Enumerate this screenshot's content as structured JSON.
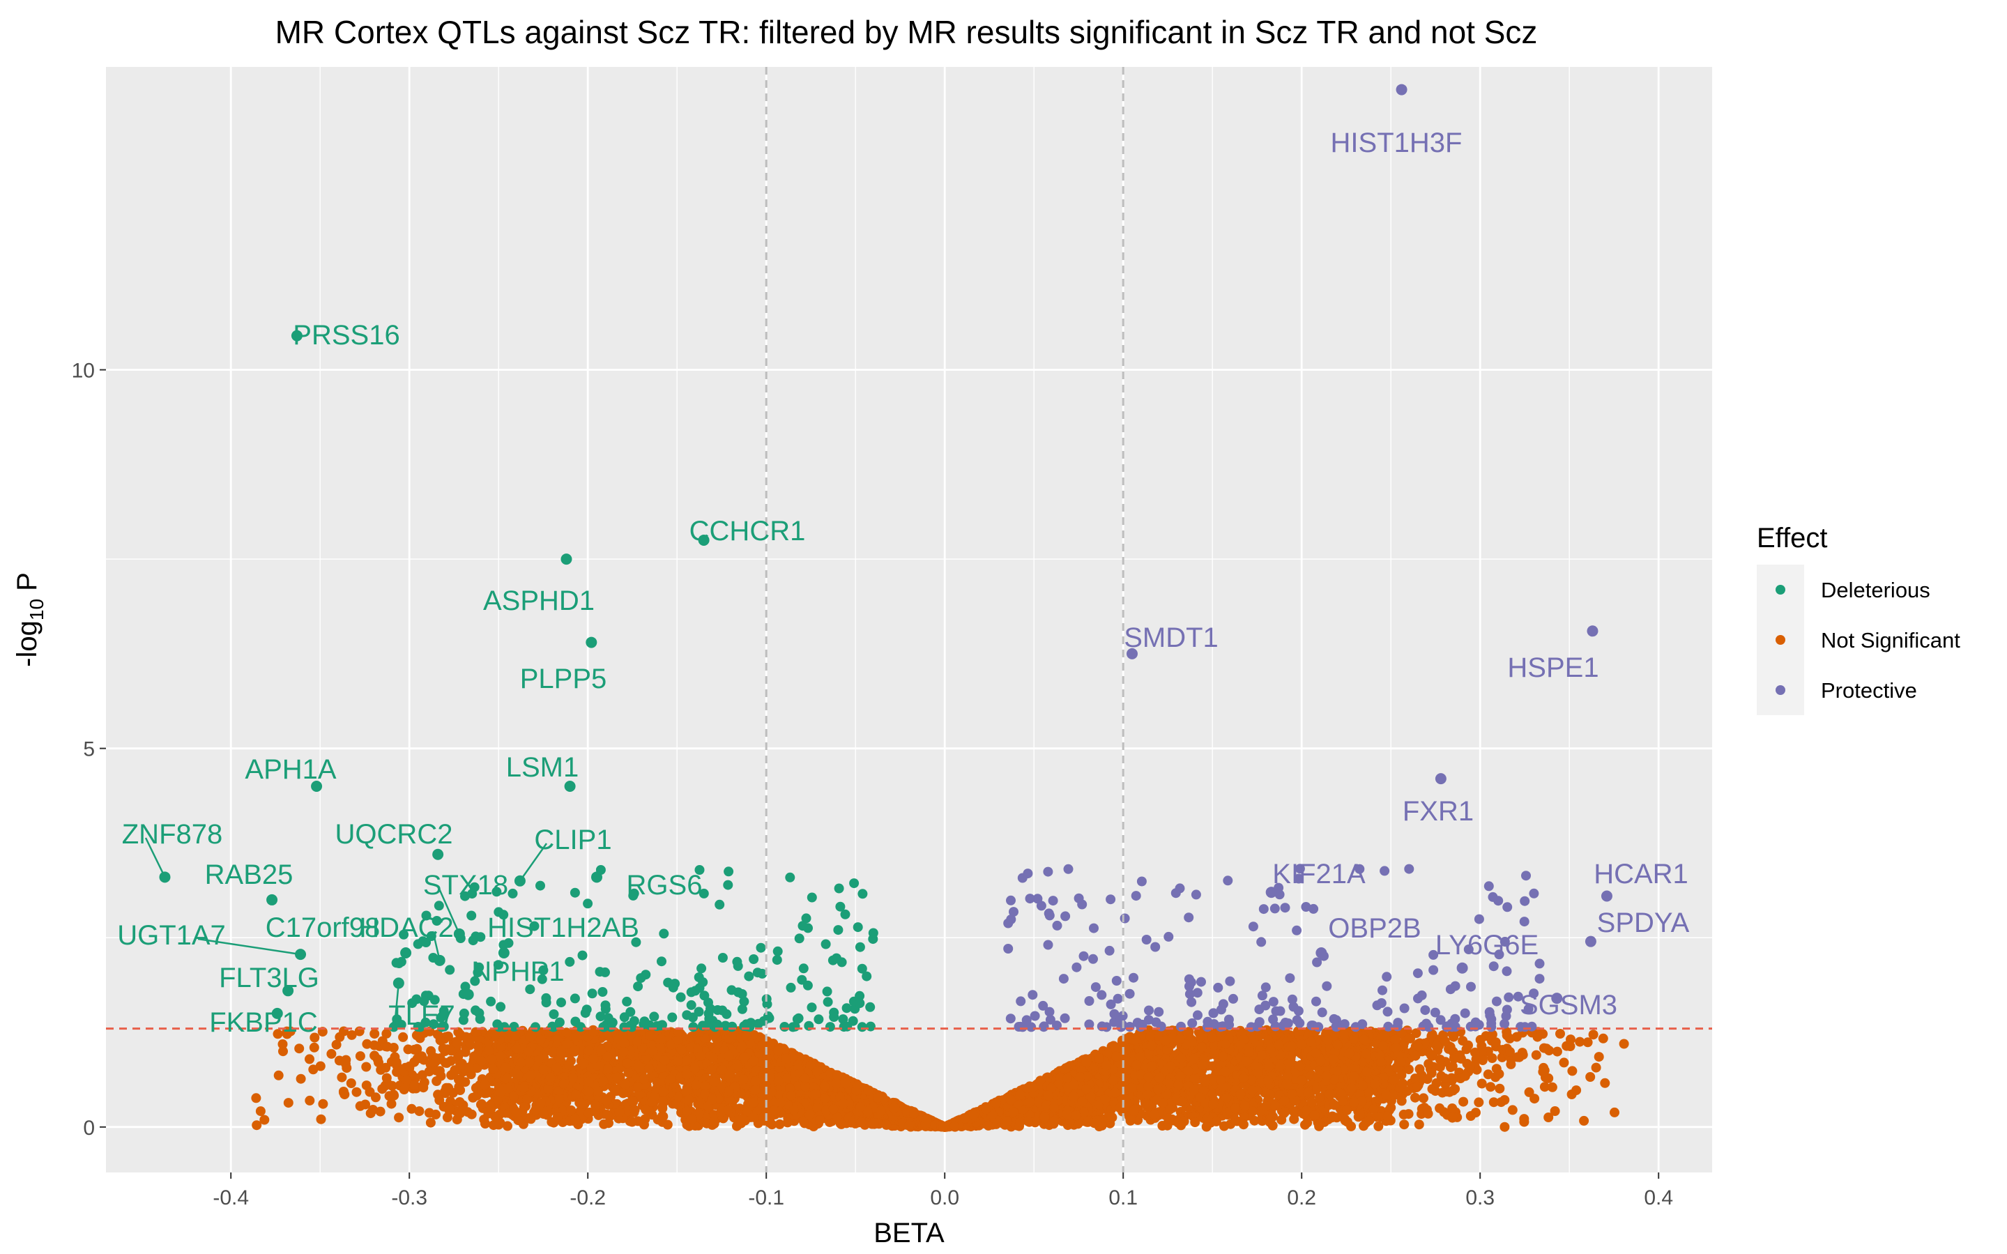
{
  "chart_data": {
    "type": "scatter",
    "title": "MR Cortex QTLs against Scz TR: filtered by MR results significant in Scz TR and not Scz",
    "xlabel": "BETA",
    "ylabel_main": "-log",
    "ylabel_sub": "10",
    "ylabel_tail": " P",
    "xlim": [
      -0.47,
      0.43
    ],
    "ylim": [
      -0.6,
      14.0
    ],
    "x_ticks": [
      -0.4,
      -0.3,
      -0.2,
      -0.1,
      0.0,
      0.1,
      0.2,
      0.3,
      0.4
    ],
    "x_tick_labels": [
      "-0.4",
      "-0.3",
      "-0.2",
      "-0.1",
      "0.0",
      "0.1",
      "0.2",
      "0.3",
      "0.4"
    ],
    "y_ticks": [
      0,
      5,
      10
    ],
    "y_tick_labels": [
      "0",
      "5",
      "10"
    ],
    "grid": true,
    "vlines": [
      -0.1,
      0.1
    ],
    "hline": 1.3,
    "colors": {
      "Deleterious": "#1b9e77",
      "Not Significant": "#d95f02",
      "Protective": "#7570b3",
      "panel_bg": "#ebebeb",
      "grid": "#ffffff",
      "vline": "#bdbdbd",
      "hline": "#e8604a"
    },
    "legend": {
      "title": "Effect",
      "position": "right",
      "entries": [
        "Deleterious",
        "Not Significant",
        "Protective"
      ]
    },
    "labeled_points": [
      {
        "gene": "HIST1H3F",
        "x": 0.256,
        "y": 13.7,
        "group": "Protective"
      },
      {
        "gene": "PRSS16",
        "x": -0.363,
        "y": 10.45,
        "group": "Deleterious"
      },
      {
        "gene": "CCHCR1",
        "x": -0.135,
        "y": 7.75,
        "group": "Deleterious"
      },
      {
        "gene": "ASPHD1",
        "x": -0.212,
        "y": 7.5,
        "group": "Deleterious"
      },
      {
        "gene": "PLPP5",
        "x": -0.198,
        "y": 6.4,
        "group": "Deleterious"
      },
      {
        "gene": "SMDT1",
        "x": 0.105,
        "y": 6.25,
        "group": "Protective"
      },
      {
        "gene": "HSPE1",
        "x": 0.363,
        "y": 6.55,
        "group": "Protective"
      },
      {
        "gene": "FXR1",
        "x": 0.278,
        "y": 4.6,
        "group": "Protective"
      },
      {
        "gene": "APH1A",
        "x": -0.352,
        "y": 4.5,
        "group": "Deleterious"
      },
      {
        "gene": "LSM1",
        "x": -0.21,
        "y": 4.5,
        "group": "Deleterious"
      },
      {
        "gene": "ZNF878",
        "x": -0.437,
        "y": 3.3,
        "group": "Deleterious"
      },
      {
        "gene": "UQCRC2",
        "x": -0.284,
        "y": 3.6,
        "group": "Deleterious"
      },
      {
        "gene": "RAB25",
        "x": -0.377,
        "y": 3.0,
        "group": "Deleterious"
      },
      {
        "gene": "CLIP1",
        "x": -0.238,
        "y": 3.25,
        "group": "Deleterious"
      },
      {
        "gene": "STX18",
        "x": -0.272,
        "y": 2.55,
        "group": "Deleterious"
      },
      {
        "gene": "RGS6",
        "x": -0.195,
        "y": 3.3,
        "group": "Deleterious"
      },
      {
        "gene": "KIF21A",
        "x": 0.183,
        "y": 3.1,
        "group": "Protective"
      },
      {
        "gene": "HCAR1",
        "x": 0.371,
        "y": 3.05,
        "group": "Protective"
      },
      {
        "gene": "UGT1A7",
        "x": -0.361,
        "y": 2.28,
        "group": "Deleterious"
      },
      {
        "gene": "C17orf98",
        "x": -0.302,
        "y": 2.3,
        "group": "Deleterious"
      },
      {
        "gene": "HDAC2",
        "x": -0.283,
        "y": 2.2,
        "group": "Deleterious"
      },
      {
        "gene": "HIST1H2AB",
        "x": -0.247,
        "y": 2.3,
        "group": "Deleterious"
      },
      {
        "gene": "OBP2B",
        "x": 0.211,
        "y": 2.3,
        "group": "Protective"
      },
      {
        "gene": "SPDYA",
        "x": 0.362,
        "y": 2.45,
        "group": "Protective"
      },
      {
        "gene": "LY6G6E",
        "x": 0.29,
        "y": 2.1,
        "group": "Protective"
      },
      {
        "gene": "FLT3LG",
        "x": -0.368,
        "y": 1.8,
        "group": "Deleterious"
      },
      {
        "gene": "NPHP1",
        "x": -0.267,
        "y": 1.75,
        "group": "Deleterious"
      },
      {
        "gene": "FKBP1C",
        "x": -0.374,
        "y": 1.5,
        "group": "Deleterious"
      },
      {
        "gene": "TLE7",
        "x": -0.306,
        "y": 1.9,
        "group": "Deleterious"
      },
      {
        "gene": "SGSM3",
        "x": 0.343,
        "y": 1.7,
        "group": "Protective"
      }
    ]
  }
}
